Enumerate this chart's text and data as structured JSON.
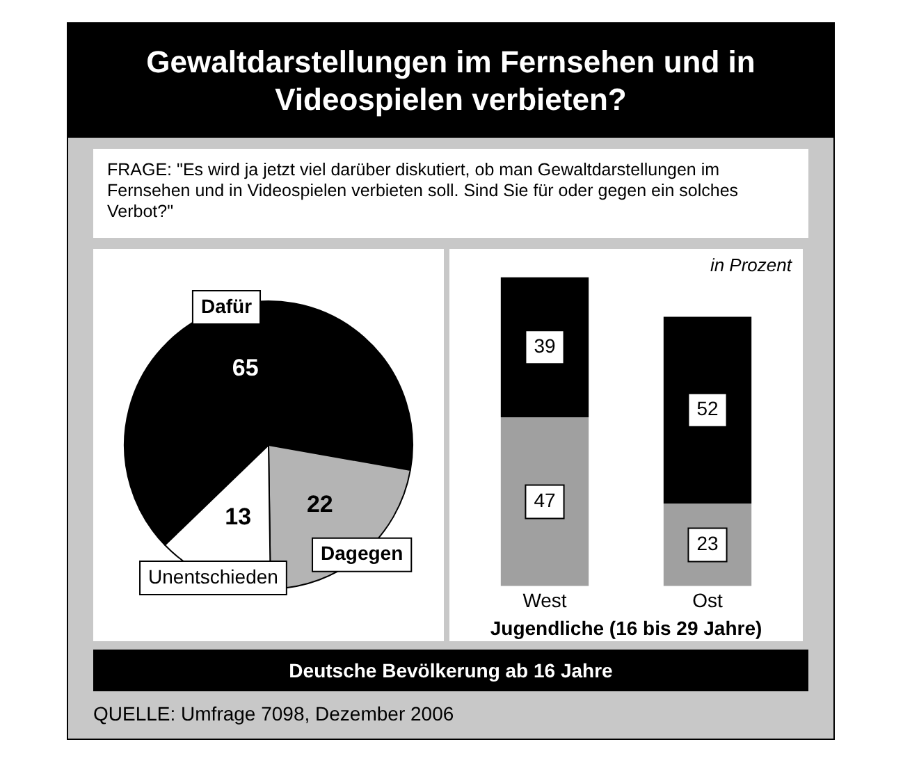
{
  "chart_data": [
    {
      "type": "pie",
      "title": "Gewaltdarstellungen im Fernsehen und in Videospielen verbieten?",
      "subtitle": "FRAGE:  \"Es wird ja jetzt viel darüber diskutiert, ob man Gewaltdarstellungen im Fernsehen und in Videospielen verbieten soll. Sind Sie für oder gegen ein solches Verbot?\"",
      "categories": [
        "Dafür",
        "Dagegen",
        "Unentschieden"
      ],
      "values": [
        65,
        22,
        13
      ],
      "colors": [
        "#000000",
        "#b4b4b4",
        "#ffffff"
      ],
      "data_labels": true,
      "legend": false,
      "annotations": [
        "Deutsche Bevölkerung ab 16 Jahre",
        "QUELLE: Umfrage 7098, Dezember 2006"
      ]
    },
    {
      "type": "bar",
      "stacked": true,
      "categories": [
        "West",
        "Ost"
      ],
      "xlabel": "Jugendliche (16 bis 29 Jahre)",
      "series": [
        {
          "color": "#a0a0a0",
          "values": [
            47,
            23
          ]
        },
        {
          "color": "#000000",
          "values": [
            39,
            52
          ]
        }
      ],
      "data_labels": true,
      "grid": false,
      "legend": false,
      "annotations": [
        "in Prozent"
      ]
    }
  ]
}
